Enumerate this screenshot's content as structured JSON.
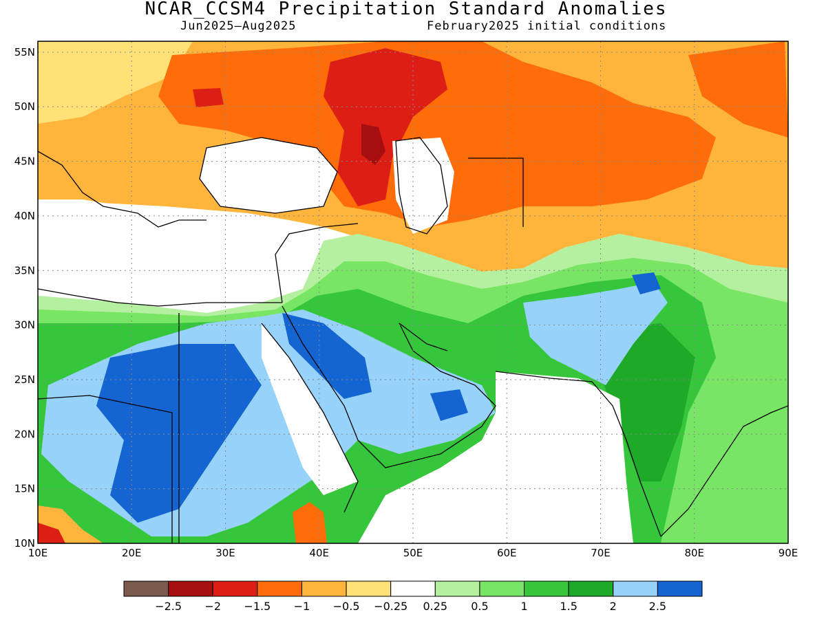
{
  "title": "NCAR_CCSM4 Precipitation Standard Anomalies",
  "period": "Jun2025–Aug2025",
  "initial_conditions": "February2025 initial conditions",
  "map": {
    "lon_range": [
      10,
      90
    ],
    "lat_range": [
      10,
      56
    ],
    "lon_ticks": [
      "10E",
      "20E",
      "30E",
      "40E",
      "50E",
      "60E",
      "70E",
      "80E",
      "90E"
    ],
    "lat_ticks": [
      "10N",
      "15N",
      "20N",
      "25N",
      "30N",
      "35N",
      "40N",
      "45N",
      "50N",
      "55N"
    ],
    "grid": "dotted",
    "colors": {
      "c_m3": "#7b5a4b",
      "c_m25": "#a50f0f",
      "c_m2": "#dc1e14",
      "c_m15": "#ff6c0a",
      "c_m1": "#ffb43c",
      "c_m05": "#ffe178",
      "c_0": "#ffffff",
      "c_p025": "#b4f0a0",
      "c_p05": "#78e664",
      "c_p1": "#36c63c",
      "c_p15": "#1eaa28",
      "c_p2": "#96d2fa",
      "c_p25": "#1464d2"
    }
  },
  "colorbar": {
    "labels": [
      "−2.5",
      "−2",
      "−1.5",
      "−1",
      "−0.5",
      "−0.25",
      "0.25",
      "0.5",
      "1",
      "1.5",
      "2",
      "2.5"
    ],
    "colors": [
      "#7b5a4b",
      "#a50f0f",
      "#dc1e14",
      "#ff6c0a",
      "#ffb43c",
      "#ffe178",
      "#ffffff",
      "#b4f0a0",
      "#78e664",
      "#36c63c",
      "#1eaa28",
      "#96d2fa",
      "#1464d2"
    ]
  }
}
